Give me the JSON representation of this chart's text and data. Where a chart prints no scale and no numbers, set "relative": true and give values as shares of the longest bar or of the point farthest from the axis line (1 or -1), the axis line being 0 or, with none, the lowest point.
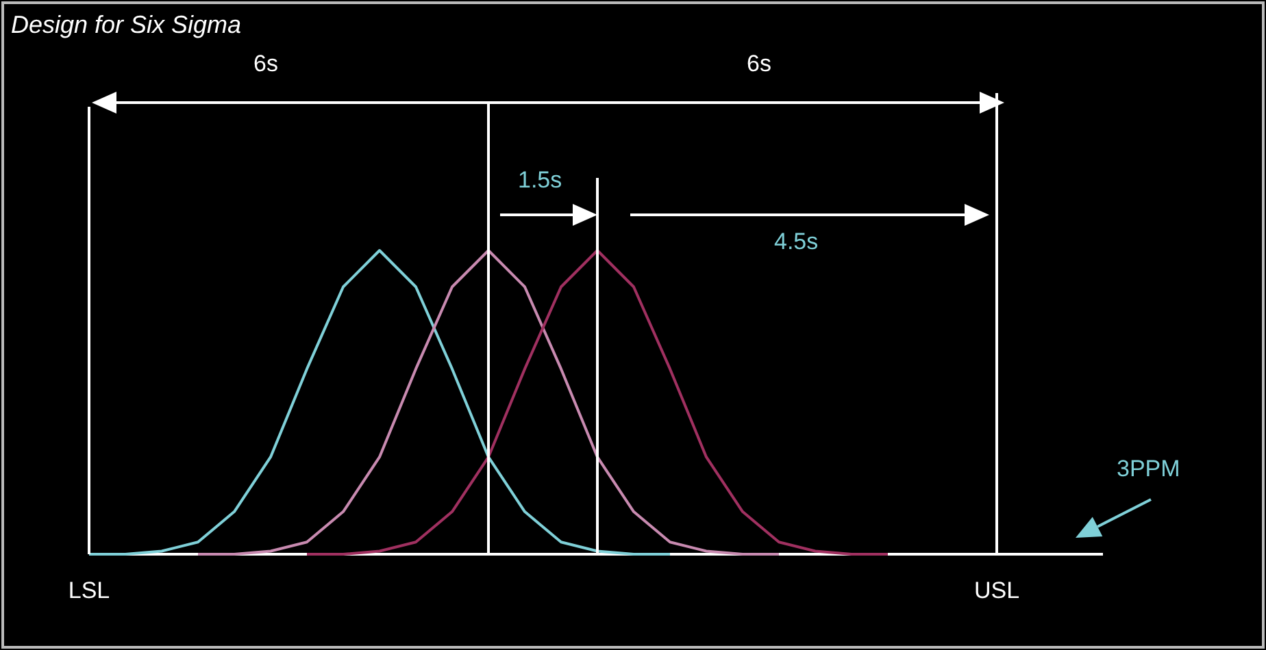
{
  "chart_data": {
    "type": "line",
    "title": "Design for Six Sigma",
    "relative": true,
    "line_style": "solid",
    "grid": "x",
    "categories": [
      "LSL",
      null,
      null,
      null,
      null,
      null,
      null,
      null,
      null,
      null,
      null,
      null,
      null,
      null,
      null,
      null,
      null,
      null,
      null,
      null,
      null,
      null,
      null,
      null,
      null,
      "USL",
      null,
      null
    ],
    "series": [
      {
        "color": "#7fd0d8",
        "values": [
          0,
          0,
          0.01,
          0.04,
          0.14,
          0.32,
          0.61,
          0.88,
          1,
          0.88,
          0.61,
          0.32,
          0.14,
          0.04,
          0.01,
          0,
          0,
          null,
          null,
          null,
          null,
          null,
          null,
          null,
          null,
          null,
          null,
          null
        ]
      },
      {
        "color": "#c88ab0",
        "values": [
          null,
          null,
          null,
          0,
          0,
          0.01,
          0.04,
          0.14,
          0.32,
          0.61,
          0.88,
          1,
          0.88,
          0.61,
          0.32,
          0.14,
          0.04,
          0.01,
          0,
          0,
          null,
          null,
          null,
          null,
          null,
          null,
          null,
          null
        ]
      },
      {
        "color": "#a03060",
        "values": [
          null,
          null,
          null,
          null,
          null,
          null,
          0,
          0,
          0.01,
          0.04,
          0.14,
          0.32,
          0.61,
          0.88,
          1,
          0.88,
          0.61,
          0.32,
          0.14,
          0.04,
          0.01,
          0,
          0,
          null,
          null,
          null,
          null,
          null
        ]
      }
    ],
    "annotations": [
      "6s",
      "6s",
      "1.5s",
      "4.5s",
      "3PPM"
    ]
  }
}
